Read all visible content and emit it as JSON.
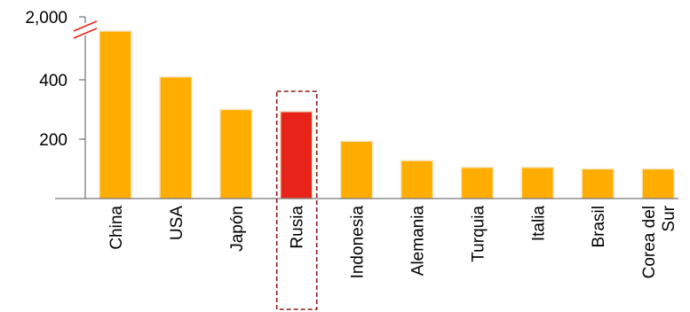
{
  "chart_data": {
    "type": "bar",
    "categories": [
      "China",
      "USA",
      "Japón",
      "Rusia",
      "Indonesia",
      "Alemania",
      "Turquia",
      "Italia",
      "Brasil",
      "Corea del Sur"
    ],
    "category_lines": [
      [
        "China"
      ],
      [
        "USA"
      ],
      [
        "Japón"
      ],
      [
        "Rusia"
      ],
      [
        "Indonesia"
      ],
      [
        "Alemania"
      ],
      [
        "Turquia"
      ],
      [
        "Italia"
      ],
      [
        "Brasil"
      ],
      [
        "Corea del",
        "Sur"
      ]
    ],
    "values": [
      2000,
      410,
      300,
      293,
      193,
      128,
      105,
      105,
      100,
      100
    ],
    "y_ticks": [
      {
        "value": 200,
        "label": "200"
      },
      {
        "value": 400,
        "label": "400"
      },
      {
        "value": 2000,
        "label": "2,000"
      }
    ],
    "axis_break": true,
    "ylim": [
      0,
      2000
    ],
    "title": "",
    "xlabel": "",
    "ylabel": "",
    "highlight_category": "Rusia",
    "grid": false,
    "colors": {
      "bar": "#FFAD00",
      "highlight": "#E8231A",
      "axis": "#555555",
      "break_mark": "#E8231A",
      "highlight_box": "#8B1A1A"
    }
  }
}
